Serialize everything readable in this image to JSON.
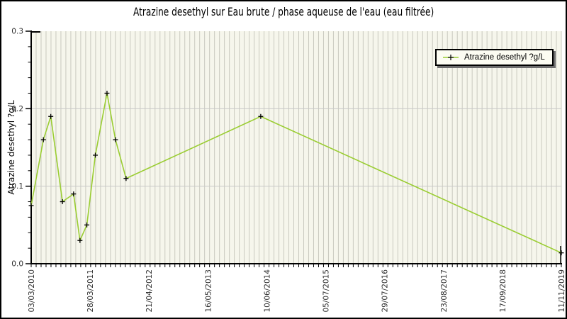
{
  "title": "Atrazine desethyl sur Eau brute / phase aqueuse de l'eau (eau filtrée)",
  "y_axis_label": "Atrazine desethyl ?g/L",
  "legend": {
    "label": "Atrazine desethyl ?g/L",
    "marker_icon": "plus-on-line-icon"
  },
  "chart_data": {
    "type": "line",
    "title": "Atrazine desethyl sur Eau brute / phase aqueuse de l'eau (eau filtrée)",
    "xlabel": "",
    "ylabel": "Atrazine desethyl ?g/L",
    "ylim": [
      0.0,
      0.3
    ],
    "y_tick_labels": [
      "0.0",
      "0.1",
      "0.2",
      "0.3"
    ],
    "y_minor_tick_step": 0.02,
    "x_axis_type": "date",
    "x_tick_labels": [
      "03/03/2010",
      "28/03/2011",
      "21/04/2012",
      "16/05/2013",
      "10/06/2014",
      "05/07/2015",
      "29/07/2016",
      "23/08/2017",
      "17/09/2018",
      "11/11/2019"
    ],
    "grid": {
      "vertical_minor_count": 107,
      "horizontal_major_values": [
        0.1,
        0.2
      ],
      "legend_position": "top-right"
    },
    "series": [
      {
        "name": "Atrazine desethyl ?g/L",
        "marker": "plus",
        "points": [
          {
            "x_frac": 0.0,
            "value": 0.075
          },
          {
            "x_frac": 0.023,
            "value": 0.16
          },
          {
            "x_frac": 0.037,
            "value": 0.19
          },
          {
            "x_frac": 0.059,
            "value": 0.08
          },
          {
            "x_frac": 0.08,
            "value": 0.09
          },
          {
            "x_frac": 0.092,
            "value": 0.03
          },
          {
            "x_frac": 0.105,
            "value": 0.05
          },
          {
            "x_frac": 0.121,
            "value": 0.14
          },
          {
            "x_frac": 0.143,
            "value": 0.22
          },
          {
            "x_frac": 0.159,
            "value": 0.16
          },
          {
            "x_frac": 0.179,
            "value": 0.11
          },
          {
            "x_frac": 0.433,
            "value": 0.19
          },
          {
            "x_frac": 1.0,
            "value": 0.014
          }
        ]
      }
    ]
  },
  "style": {
    "line_color": "#9acd32",
    "marker_color": "#000000",
    "plot_bg": "#f6f6ec",
    "grid_vertical_color": "#c9c9bf",
    "grid_horizontal_color": "#c8c8c8",
    "axis_color": "#000000",
    "tick_label_color": "#2f2f2f",
    "legend_bg": "#fcfcf2",
    "legend_shadow": "#6e6e6e"
  }
}
